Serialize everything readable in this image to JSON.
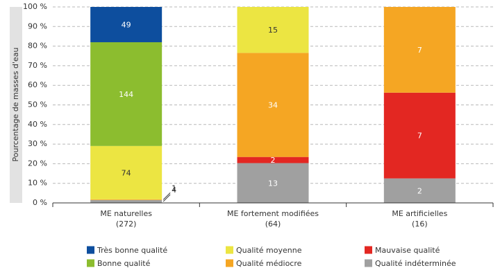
{
  "chart_data": {
    "type": "stacked_percent",
    "y_label": "Pourcentage de masses d'eau",
    "categories": [
      [
        "ME naturelles",
        "(272)"
      ],
      [
        "ME fortement modifiées",
        "(64)"
      ],
      [
        "ME artificielles",
        "(16)"
      ]
    ],
    "series": [
      {
        "name": "Très bonne qualité",
        "color": "#0d4e9e",
        "values": [
          49,
          null,
          null
        ]
      },
      {
        "name": "Bonne qualité",
        "color": "#8cbd2f",
        "values": [
          144,
          null,
          null
        ]
      },
      {
        "name": "Qualité moyenne",
        "color": "#ece542",
        "values": [
          74,
          15,
          null
        ]
      },
      {
        "name": "Qualité médiocre",
        "color": "#f5a623",
        "values": [
          1,
          34,
          7
        ]
      },
      {
        "name": "Mauvaise qualité",
        "color": "#e32722",
        "values": [
          null,
          2,
          7
        ]
      },
      {
        "name": "Qualité indéterminée",
        "color": "#a0a0a0",
        "values": [
          4,
          13,
          2
        ]
      }
    ],
    "ylim": [
      0,
      100
    ],
    "yticks": [
      {
        "value": 0,
        "label": "0 %"
      },
      {
        "value": 10,
        "label": "10 %"
      },
      {
        "value": 20,
        "label": "20 %"
      },
      {
        "value": 30,
        "label": "30 %"
      },
      {
        "value": 40,
        "label": "40 %"
      },
      {
        "value": 50,
        "label": "50 %"
      },
      {
        "value": 60,
        "label": "60 %"
      },
      {
        "value": 70,
        "label": "70 %"
      },
      {
        "value": 80,
        "label": "80 %"
      },
      {
        "value": 90,
        "label": "90 %"
      },
      {
        "value": 100,
        "label": "100 %"
      }
    ],
    "grid": true
  }
}
